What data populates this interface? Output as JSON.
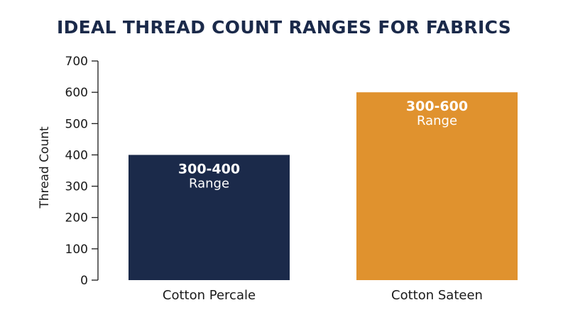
{
  "chart_data": {
    "type": "bar",
    "title": "IDEAL THREAD COUNT RANGES FOR FABRICS",
    "xlabel": "",
    "ylabel": "Thread Count",
    "ylim": [
      0,
      700
    ],
    "yticks": [
      0,
      100,
      200,
      300,
      400,
      500,
      600,
      700
    ],
    "grid": false,
    "categories": [
      "Cotton Percale",
      "Cotton Sateen"
    ],
    "values": [
      400,
      600
    ],
    "data_labels": [
      {
        "value": "300-400",
        "sub": "Range"
      },
      {
        "value": "300-600",
        "sub": "Range"
      }
    ],
    "colors": [
      "#1b2a4a",
      "#e0922e"
    ],
    "axis_color": "#1a1a1a"
  }
}
